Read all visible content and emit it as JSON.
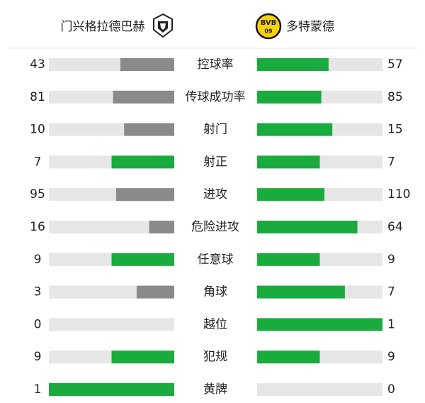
{
  "header": {
    "home": {
      "name": "门兴格拉德巴赫"
    },
    "away": {
      "name": "多特蒙德",
      "logo_text": "BVB",
      "logo_sub": "09"
    }
  },
  "colors": {
    "track": "#e6e6e6",
    "leading": "#1aab3e",
    "trailing": "#8a8a8a"
  },
  "stats": [
    {
      "label": "控球率",
      "home": 43,
      "away": 57
    },
    {
      "label": "传球成功率",
      "home": 81,
      "away": 85
    },
    {
      "label": "射门",
      "home": 10,
      "away": 15
    },
    {
      "label": "射正",
      "home": 7,
      "away": 7
    },
    {
      "label": "进攻",
      "home": 95,
      "away": 110
    },
    {
      "label": "危险进攻",
      "home": 16,
      "away": 64
    },
    {
      "label": "任意球",
      "home": 9,
      "away": 9
    },
    {
      "label": "角球",
      "home": 3,
      "away": 7
    },
    {
      "label": "越位",
      "home": 0,
      "away": 1
    },
    {
      "label": "犯规",
      "home": 9,
      "away": 9
    },
    {
      "label": "黄牌",
      "home": 1,
      "away": 0
    }
  ]
}
